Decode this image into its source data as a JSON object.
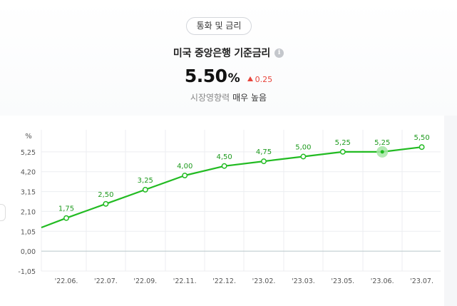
{
  "header": {
    "category_chip": "통화 및 금리",
    "title": "미국 중앙은행 기준금리",
    "info_icon": "info-icon",
    "value": "5.50",
    "unit": "%",
    "change": "0.25",
    "change_color": "#e8453c",
    "impact_label": "시장영향력",
    "impact_value": "매우 높음"
  },
  "chart_data": {
    "type": "line",
    "y_unit_label": "%",
    "ylim": [
      -1.05,
      6.3
    ],
    "y_ticks": [
      {
        "value": 5.25,
        "label": "5,25"
      },
      {
        "value": 4.2,
        "label": "4,20"
      },
      {
        "value": 3.15,
        "label": "3,15"
      },
      {
        "value": 2.1,
        "label": "2,10"
      },
      {
        "value": 1.05,
        "label": "1,05"
      },
      {
        "value": 0,
        "label": "0,00"
      },
      {
        "value": -1.05,
        "label": "-1,05"
      }
    ],
    "categories": [
      "'22.06.",
      "'22.07.",
      "'22.09.",
      "'22.11.",
      "'22.12.",
      "'23.02.",
      "'23.03.",
      "'23.05.",
      "'23.06.",
      "'23.07."
    ],
    "values": [
      1.75,
      2.5,
      3.25,
      4.0,
      4.5,
      4.75,
      5.0,
      5.25,
      5.25,
      5.5
    ],
    "value_labels": [
      "1,75",
      "2,50",
      "3,25",
      "4,00",
      "4,50",
      "4,75",
      "5,00",
      "5,25",
      "5,25",
      "5,50"
    ],
    "leading_value": 1.25,
    "highlight_index": 8,
    "grid": true,
    "line_color": "#22bb22",
    "label_color": "#1e9a1e",
    "highlight_color": "#a6e6a6"
  }
}
